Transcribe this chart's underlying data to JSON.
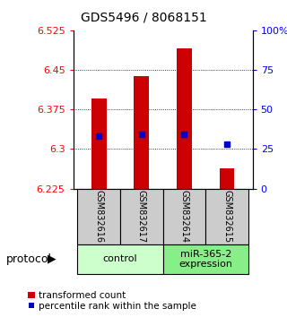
{
  "title": "GDS5496 / 8068151",
  "samples": [
    "GSM832616",
    "GSM832617",
    "GSM832614",
    "GSM832615"
  ],
  "transformed_count": [
    6.395,
    6.438,
    6.49,
    6.263
  ],
  "percentile_rank": [
    33.0,
    34.0,
    34.0,
    28.0
  ],
  "ylim_left": [
    6.225,
    6.525
  ],
  "ylim_right": [
    0,
    100
  ],
  "yticks_left": [
    6.225,
    6.3,
    6.375,
    6.45,
    6.525
  ],
  "yticks_right": [
    0,
    25,
    50,
    75,
    100
  ],
  "bar_color": "#cc0000",
  "dot_color": "#0000cc",
  "bar_bottom": 6.225,
  "group_labels": [
    "control",
    "miR-365-2\nexpression"
  ],
  "group_colors": [
    "#ccffcc",
    "#88ee88"
  ],
  "protocol_label": "protocol",
  "legend_bar_label": "transformed count",
  "legend_dot_label": "percentile rank within the sample",
  "title_fontsize": 10,
  "tick_fontsize": 8,
  "sample_fontsize": 7,
  "group_fontsize": 8,
  "legend_fontsize": 7.5,
  "protocol_fontsize": 9
}
